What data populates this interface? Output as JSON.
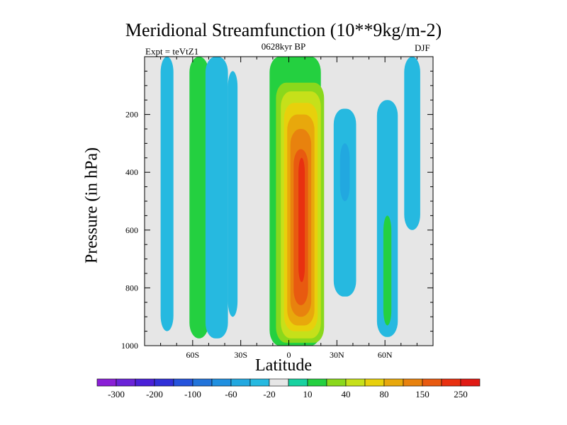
{
  "chart_data": {
    "type": "heatmap",
    "title": "Meridional Streamfunction (10**9kg/m-2)",
    "subtitle": "0628kyr BP",
    "left_label": "Expt = teVtZ1",
    "right_label": "DJF",
    "xlabel": "Latitude",
    "ylabel": "Pressure (in hPa)",
    "x_range": [
      -90,
      90
    ],
    "y_range": [
      0,
      1000
    ],
    "y_inverted": true,
    "x_ticks": [
      {
        "value": -60,
        "label": "60S"
      },
      {
        "value": -30,
        "label": "30S"
      },
      {
        "value": 0,
        "label": "0"
      },
      {
        "value": 30,
        "label": "30N"
      },
      {
        "value": 60,
        "label": "60N"
      }
    ],
    "y_ticks": [
      {
        "value": 200,
        "label": "200"
      },
      {
        "value": 400,
        "label": "400"
      },
      {
        "value": 600,
        "label": "600"
      },
      {
        "value": 800,
        "label": "800"
      },
      {
        "value": 1000,
        "label": "1000"
      }
    ],
    "colorbar": {
      "colors": [
        "#8a1fd6",
        "#6a23d8",
        "#4a20d8",
        "#3030d8",
        "#2553dc",
        "#2274da",
        "#2090e0",
        "#22a8e0",
        "#26b9e0",
        "#e6e6e6",
        "#18d2a0",
        "#24d040",
        "#8ad81c",
        "#c6e01a",
        "#e8d00c",
        "#e8a80c",
        "#e8820e",
        "#e85a10",
        "#e83010",
        "#e01a14"
      ],
      "tick_labels": [
        "-300",
        "-200",
        "-100",
        "-60",
        "-20",
        "10",
        "40",
        "80",
        "150",
        "250"
      ]
    },
    "cells": [
      {
        "x": [
          -80,
          -72
        ],
        "y": [
          0,
          950
        ],
        "level": 8
      },
      {
        "x": [
          -62,
          -50
        ],
        "y": [
          0,
          975
        ],
        "level": 11
      },
      {
        "x": [
          -52,
          -38
        ],
        "y": [
          0,
          975
        ],
        "level": 8
      },
      {
        "x": [
          -38,
          -32
        ],
        "y": [
          50,
          900
        ],
        "level": 8
      },
      {
        "x": [
          -12,
          20
        ],
        "y": [
          0,
          1000
        ],
        "level": 11
      },
      {
        "x": [
          -8,
          22
        ],
        "y": [
          90,
          990
        ],
        "level": 12
      },
      {
        "x": [
          -5,
          20
        ],
        "y": [
          120,
          975
        ],
        "level": 13
      },
      {
        "x": [
          -3,
          18
        ],
        "y": [
          160,
          950
        ],
        "level": 14
      },
      {
        "x": [
          -1,
          16
        ],
        "y": [
          200,
          930
        ],
        "level": 15
      },
      {
        "x": [
          1,
          14
        ],
        "y": [
          250,
          900
        ],
        "level": 16
      },
      {
        "x": [
          3,
          12
        ],
        "y": [
          320,
          860
        ],
        "level": 17
      },
      {
        "x": [
          6,
          10
        ],
        "y": [
          350,
          780
        ],
        "level": 18
      },
      {
        "x": [
          28,
          42
        ],
        "y": [
          180,
          830
        ],
        "level": 8
      },
      {
        "x": [
          32,
          38
        ],
        "y": [
          300,
          500
        ],
        "level": 7
      },
      {
        "x": [
          55,
          68
        ],
        "y": [
          150,
          970
        ],
        "level": 8
      },
      {
        "x": [
          59,
          64
        ],
        "y": [
          550,
          930
        ],
        "level": 11
      },
      {
        "x": [
          72,
          82
        ],
        "y": [
          0,
          600
        ],
        "level": 8
      }
    ]
  }
}
